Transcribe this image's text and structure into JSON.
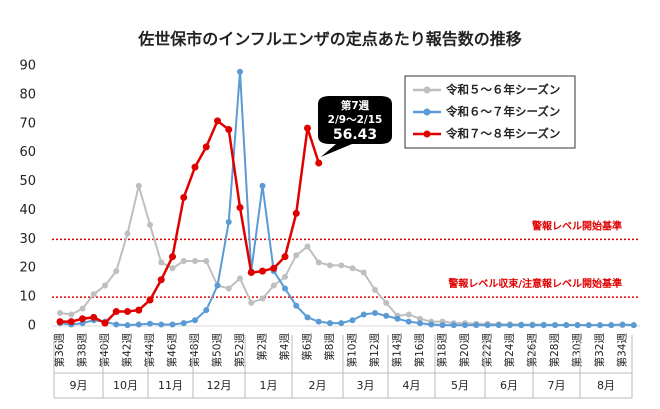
{
  "chart_data": {
    "type": "line",
    "title": "佐世保市のインフルエンザの定点あたり報告数の推移",
    "categories": [
      "第36週",
      null,
      "第38週",
      null,
      "第40週",
      null,
      "第42週",
      null,
      "第44週",
      null,
      "第46週",
      null,
      "第48週",
      null,
      "第50週",
      null,
      "第52週",
      null,
      "第2週",
      null,
      "第4週",
      null,
      "第6週",
      null,
      "第8週",
      null,
      "第10週",
      null,
      "第12週",
      null,
      "第14週",
      null,
      "第16週",
      null,
      "第18週",
      null,
      "第20週",
      null,
      "第22週",
      null,
      "第24週",
      null,
      "第26週",
      null,
      "第28週",
      null,
      "第30週",
      null,
      "第32週",
      null,
      "第34週",
      null
    ],
    "months": [
      "9月",
      "10月",
      "11月",
      "12月",
      "1月",
      "2月",
      "3月",
      "4月",
      "5月",
      "6月",
      "7月",
      "8月"
    ],
    "series": [
      {
        "name": "令和５～６年シーズン",
        "color": "#bfbfbf",
        "values": [
          4.5,
          4,
          6,
          11,
          14,
          19,
          32,
          48.5,
          35,
          22,
          20,
          22.5,
          22.5,
          22.5,
          14,
          13,
          16.5,
          8,
          9.5,
          14,
          17,
          24.5,
          27.5,
          22,
          21,
          21,
          20,
          18.5,
          12.5,
          8,
          3.5,
          4,
          2.5,
          1.5,
          1.5,
          1,
          1,
          0.8,
          0.8,
          0.6,
          0.6,
          0.5,
          0.5,
          0.5,
          0.4,
          0.4,
          0.4,
          0.3,
          0.3,
          0.3,
          0.3,
          0.3
        ]
      },
      {
        "name": "令和６～７年シーズン",
        "color": "#5b9bd5",
        "values": [
          1,
          0.5,
          1,
          2,
          1.5,
          0.5,
          0.3,
          0.5,
          0.8,
          0.5,
          0.5,
          1,
          2,
          5.5,
          14,
          36,
          88,
          19,
          48.5,
          19,
          13,
          7,
          3,
          1.5,
          1,
          1,
          2,
          4,
          4.5,
          3.5,
          2.5,
          1.5,
          1,
          0.5,
          0.3,
          0.3,
          0.3,
          0.3,
          0.3,
          0.3,
          0.3,
          0.3,
          0.3,
          0.3,
          0.3,
          0.3,
          0.3,
          0.3,
          0.3,
          0.3,
          0.5,
          0.3
        ]
      },
      {
        "name": "令和７～８年シーズン",
        "color": "#e00000",
        "values": [
          1.5,
          1.5,
          2.5,
          3,
          1,
          5,
          5,
          5.5,
          9,
          16,
          24,
          44.5,
          55,
          62,
          71,
          68,
          41,
          18.5,
          19,
          20,
          24,
          39,
          68.5,
          56.43,
          null,
          null,
          null,
          null,
          null,
          null,
          null,
          null,
          null,
          null,
          null,
          null,
          null,
          null,
          null,
          null,
          null,
          null,
          null,
          null,
          null,
          null,
          null,
          null,
          null,
          null,
          null,
          null
        ]
      }
    ],
    "ylim": [
      0,
      90
    ],
    "yticks": [
      0,
      10,
      20,
      30,
      40,
      50,
      60,
      70,
      80,
      90
    ],
    "reference_lines": [
      {
        "value": 30,
        "label": "警報レベル開始基準",
        "color": "#e00000"
      },
      {
        "value": 10,
        "label": "警報レベル収束/注意報レベル開始基準",
        "color": "#e00000"
      }
    ],
    "annotation": {
      "week": "第7週",
      "period": "2/9～2/15",
      "series": 2,
      "index": 23
    }
  }
}
